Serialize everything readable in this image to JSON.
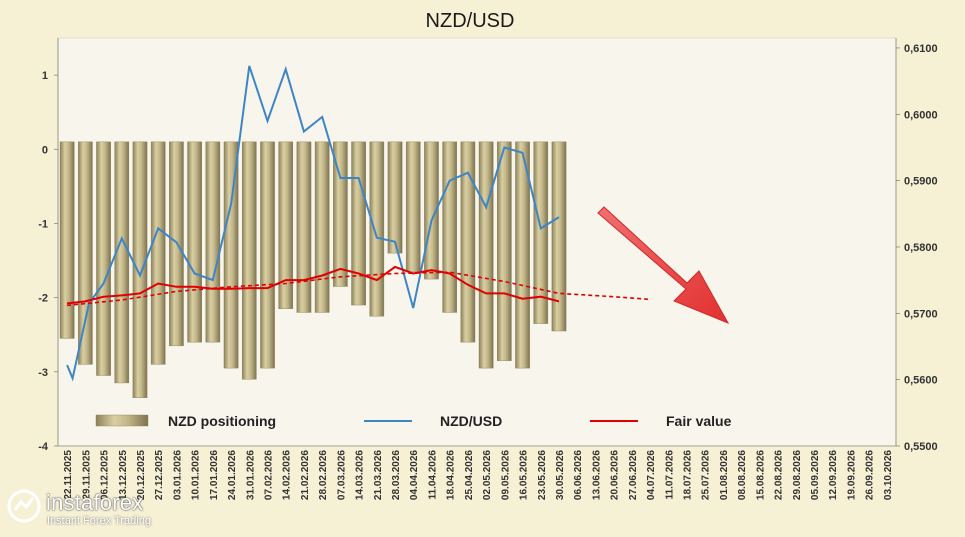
{
  "chart_data": {
    "type": "bar+line",
    "title": "NZD/USD",
    "left_axis": {
      "ticks": [
        1,
        0,
        -1,
        -2,
        -3,
        -4
      ],
      "ylim": [
        -4,
        1.5
      ]
    },
    "right_axis": {
      "ticks": [
        "0,6100",
        "0,6000",
        "0,5900",
        "0,5800",
        "0,5700",
        "0,5600",
        "0,5500"
      ],
      "ylim": [
        0.55,
        0.6115
      ]
    },
    "x_labels": [
      "22.11.2025",
      "29.11.2025",
      "06.12.2025",
      "13.12.2025",
      "20.12.2025",
      "27.12.2025",
      "03.01.2026",
      "10.01.2026",
      "17.01.2026",
      "24.01.2026",
      "31.01.2026",
      "07.02.2026",
      "14.02.2026",
      "21.02.2026",
      "28.02.2026",
      "07.03.2026",
      "14.03.2026",
      "21.03.2026",
      "28.03.2026",
      "04.04.2026",
      "11.04.2026",
      "18.04.2026",
      "25.04.2026",
      "02.05.2026",
      "09.05.2026",
      "16.05.2026",
      "23.05.2026",
      "30.05.2026",
      "06.06.2026",
      "13.06.2026",
      "20.06.2026",
      "27.06.2026",
      "04.07.2026",
      "11.07.2026",
      "18.07.2026",
      "25.07.2026",
      "01.08.2026",
      "08.08.2026",
      "15.08.2026",
      "22.08.2026",
      "29.08.2026",
      "05.09.2026",
      "12.09.2026",
      "19.09.2026",
      "26.09.2026",
      "03.10.2026"
    ],
    "series": [
      {
        "name": "NZD positioning",
        "axis": "left",
        "type": "bar",
        "color": "#b3a77a",
        "values": [
          -2.55,
          -2.9,
          -3.05,
          -3.15,
          -3.35,
          -2.9,
          -2.65,
          -2.6,
          -2.6,
          -2.95,
          -3.1,
          -2.95,
          -2.15,
          -2.2,
          -2.2,
          -1.85,
          -2.1,
          -2.25,
          -1.4,
          -1.65,
          -1.75,
          -2.2,
          -2.6,
          -2.95,
          -2.85,
          -2.95,
          -2.35,
          -2.45
        ]
      },
      {
        "name": "NZD/USD",
        "axis": "right",
        "type": "line",
        "color": "#3d85c6",
        "points": [
          [
            0.0,
            0.5622
          ],
          [
            0.3,
            0.5602
          ],
          [
            1.2,
            0.5715
          ],
          [
            2.0,
            0.5745
          ],
          [
            3.0,
            0.5813
          ],
          [
            4.0,
            0.5757
          ],
          [
            5.0,
            0.5828
          ],
          [
            6.0,
            0.5807
          ],
          [
            7.0,
            0.576
          ],
          [
            8.0,
            0.575
          ],
          [
            9.0,
            0.5865
          ],
          [
            10.0,
            0.6073
          ],
          [
            11.0,
            0.599
          ],
          [
            12.0,
            0.6068
          ],
          [
            13.0,
            0.5974
          ],
          [
            14.0,
            0.5996
          ],
          [
            15.0,
            0.5904
          ],
          [
            16.0,
            0.5904
          ],
          [
            17.0,
            0.5814
          ],
          [
            18.0,
            0.5808
          ],
          [
            19.0,
            0.5708
          ],
          [
            20.0,
            0.584
          ],
          [
            21.0,
            0.59
          ],
          [
            22.0,
            0.5912
          ],
          [
            23.0,
            0.586
          ],
          [
            24.0,
            0.595
          ],
          [
            25.0,
            0.5942
          ],
          [
            26.0,
            0.5828
          ],
          [
            27.0,
            0.5845
          ]
        ]
      },
      {
        "name": "Fair value",
        "axis": "right",
        "type": "line",
        "color": "#e00000",
        "points": [
          [
            0.0,
            0.5715
          ],
          [
            1.0,
            0.5718
          ],
          [
            2.0,
            0.5725
          ],
          [
            3.0,
            0.5727
          ],
          [
            4.0,
            0.573
          ],
          [
            5.0,
            0.5745
          ],
          [
            6.0,
            0.574
          ],
          [
            7.0,
            0.574
          ],
          [
            8.0,
            0.5737
          ],
          [
            9.0,
            0.5737
          ],
          [
            10.0,
            0.5738
          ],
          [
            11.0,
            0.5738
          ],
          [
            12.0,
            0.575
          ],
          [
            13.0,
            0.575
          ],
          [
            14.0,
            0.5757
          ],
          [
            15.0,
            0.5767
          ],
          [
            16.0,
            0.576
          ],
          [
            17.0,
            0.575
          ],
          [
            18.0,
            0.577
          ],
          [
            19.0,
            0.576
          ],
          [
            20.0,
            0.5765
          ],
          [
            21.0,
            0.576
          ],
          [
            22.0,
            0.5743
          ],
          [
            23.0,
            0.573
          ],
          [
            24.0,
            0.573
          ],
          [
            25.0,
            0.5722
          ],
          [
            26.0,
            0.5725
          ],
          [
            27.0,
            0.5718
          ]
        ]
      },
      {
        "name": "Fair value projection",
        "axis": "right",
        "type": "dashed-line",
        "color": "#e00000",
        "points": [
          [
            0.0,
            0.5712
          ],
          [
            3.0,
            0.572
          ],
          [
            6.0,
            0.5733
          ],
          [
            9.0,
            0.574
          ],
          [
            12.0,
            0.5745
          ],
          [
            15.0,
            0.5755
          ],
          [
            18.0,
            0.576
          ],
          [
            21.0,
            0.5762
          ],
          [
            24.0,
            0.5748
          ],
          [
            27.0,
            0.573
          ],
          [
            30.0,
            0.5725
          ],
          [
            32.0,
            0.5721
          ]
        ]
      }
    ],
    "legend": {
      "placement": "bottom",
      "items": [
        {
          "label": "NZD positioning",
          "type": "bar"
        },
        {
          "label": "NZD/USD",
          "type": "line"
        },
        {
          "label": "Fair value",
          "type": "line"
        }
      ]
    },
    "annotation": {
      "type": "arrow",
      "direction": "down-right",
      "color": "#e84040"
    },
    "grid": false
  },
  "watermark": {
    "brand": "instaforex",
    "subtitle": "Instant Forex Trading"
  }
}
